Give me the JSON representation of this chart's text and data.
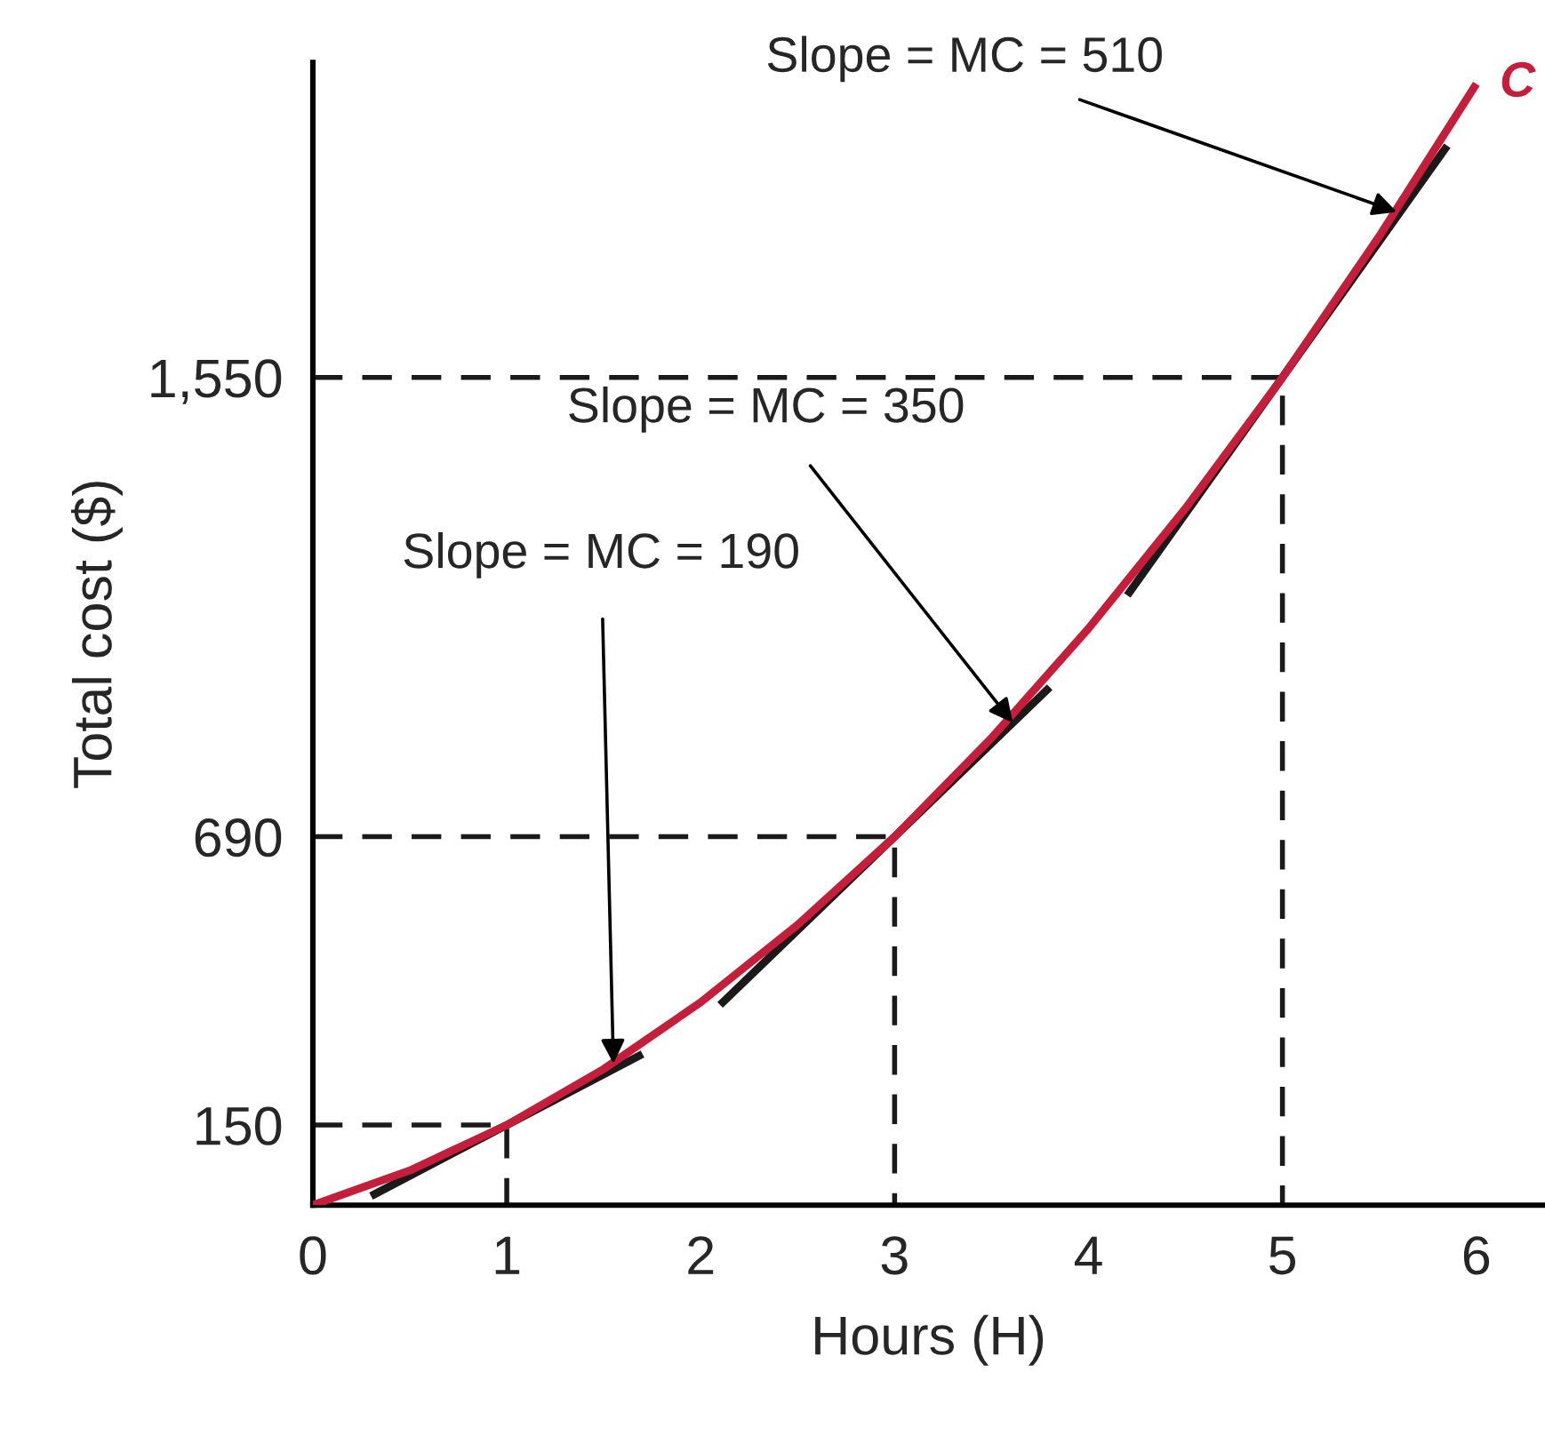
{
  "chart_data": {
    "type": "line",
    "xlabel": "Hours (H)",
    "ylabel": "Total cost ($)",
    "xlim": [
      0,
      6.35
    ],
    "ylim": [
      0,
      2140
    ],
    "xticks": [
      0,
      1,
      2,
      3,
      4,
      5,
      6
    ],
    "yticks": [
      150,
      690,
      {
        "value": 1550,
        "label": "1,550"
      }
    ],
    "grid": false,
    "legend": false,
    "marker": "none",
    "series": [
      {
        "name": "C",
        "color": "#c41e3a",
        "x": [
          0,
          0.5,
          1,
          1.5,
          2,
          2.5,
          3,
          3.5,
          4,
          4.5,
          5,
          5.5,
          6
        ],
        "values": [
          0,
          65,
          150,
          255,
          380,
          525,
          690,
          875,
          1080,
          1305,
          1550,
          1815,
          2100
        ]
      },
      {
        "color": "#1a1a1a",
        "x": [
          0.3,
          1.7
        ],
        "values": [
          17,
          283
        ]
      },
      {
        "color": "#1a1a1a",
        "x": [
          2.1,
          3.8
        ],
        "values": [
          375,
          970
        ]
      },
      {
        "color": "#1a1a1a",
        "x": [
          4.2,
          5.85
        ],
        "values": [
          1142,
          1984
        ]
      },
      {
        "color": "#1a1a1a",
        "line_style": "dashed",
        "x": [
          0,
          1,
          1
        ],
        "values": [
          150,
          150,
          0
        ]
      },
      {
        "color": "#1a1a1a",
        "line_style": "dashed",
        "x": [
          0,
          3,
          3
        ],
        "values": [
          690,
          690,
          0
        ]
      },
      {
        "color": "#1a1a1a",
        "line_style": "dashed",
        "x": [
          0,
          5,
          5
        ],
        "values": [
          1550,
          1550,
          0
        ]
      }
    ],
    "annotations": [
      {
        "text": "Slope = MC = 190",
        "x": 1.55,
        "y": 265
      },
      {
        "text": "Slope = MC = 350",
        "x": 3.61,
        "y": 903
      },
      {
        "text": "Slope = MC = 510",
        "x": 5.59,
        "y": 1860
      }
    ]
  }
}
